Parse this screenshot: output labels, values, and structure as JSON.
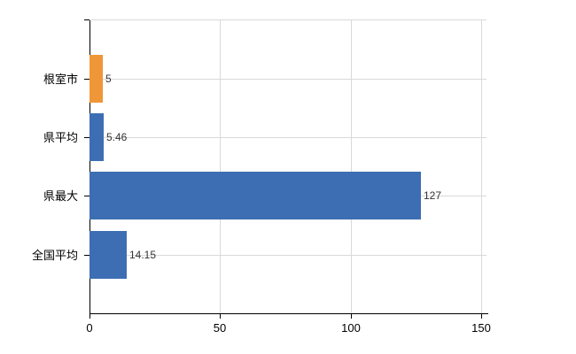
{
  "chart_data": {
    "type": "bar",
    "orientation": "horizontal",
    "title": "",
    "categories": [
      "根室市",
      "県平均",
      "県最大",
      "全国平均"
    ],
    "values": [
      5,
      5.46,
      127,
      14.15
    ],
    "value_labels": [
      "5",
      "5.46",
      "127",
      "14.15"
    ],
    "bar_colors": [
      "#ef9638",
      "#3d6eb3",
      "#3d6eb3",
      "#3d6eb3"
    ],
    "x_tick_values": [
      0,
      50,
      100,
      150
    ],
    "x_tick_labels": [
      "0",
      "50",
      "100",
      "150"
    ],
    "xlim": [
      0,
      150
    ],
    "xlabel": "",
    "ylabel": "",
    "grid": true,
    "legend": false,
    "colors": {
      "highlight_bar": "#ef9638",
      "default_bar": "#3d6eb3",
      "gridline": "#d9d9d9",
      "axis": "#000000",
      "category_text": "#000000",
      "value_text": "#333333",
      "background": "#ffffff"
    }
  }
}
